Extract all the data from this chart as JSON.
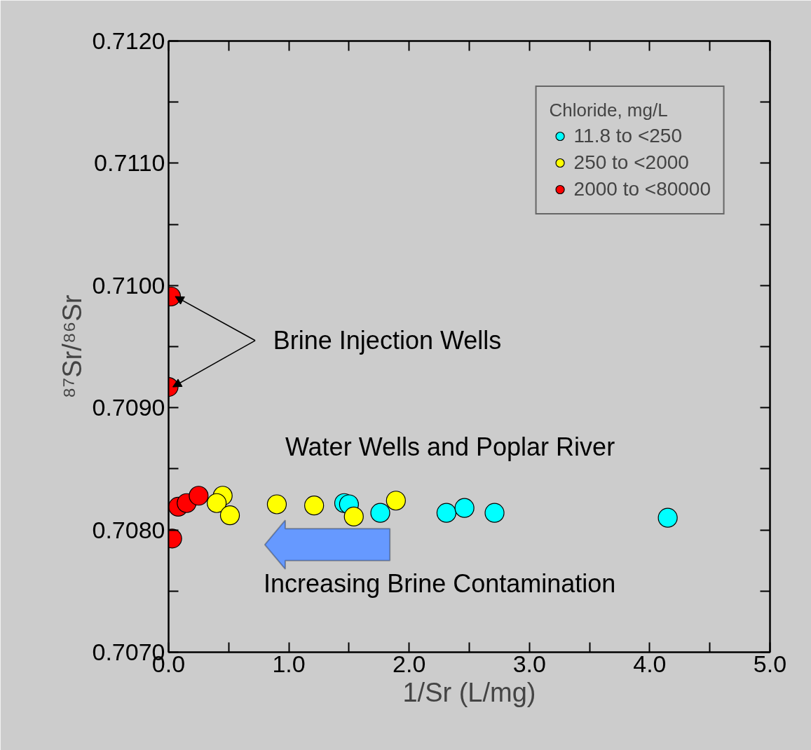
{
  "chart_data": {
    "type": "scatter",
    "xlabel": "1/Sr (L/mg)",
    "ylabel": "⁸⁷Sr/⁸⁶Sr",
    "legend_title": "Chloride, mg/L",
    "legend": "top right",
    "grid": false,
    "marker": "circle",
    "xlim": [
      0,
      5
    ],
    "ylim": [
      0.707,
      0.712
    ],
    "xticks": [
      {
        "value": 0,
        "label": "0.0"
      },
      {
        "value": 0.5,
        "label": null
      },
      {
        "value": 1,
        "label": "1.0"
      },
      {
        "value": 1.5,
        "label": null
      },
      {
        "value": 2,
        "label": "2.0"
      },
      {
        "value": 2.5,
        "label": null
      },
      {
        "value": 3,
        "label": "3.0"
      },
      {
        "value": 3.5,
        "label": null
      },
      {
        "value": 4,
        "label": "4.0"
      },
      {
        "value": 4.5,
        "label": null
      },
      {
        "value": 5,
        "label": "5.0"
      }
    ],
    "yticks": [
      {
        "value": 0.707,
        "label": "0.7070"
      },
      {
        "value": 0.7075,
        "label": null
      },
      {
        "value": 0.708,
        "label": "0.7080"
      },
      {
        "value": 0.7085,
        "label": null
      },
      {
        "value": 0.709,
        "label": "0.7090"
      },
      {
        "value": 0.7095,
        "label": null
      },
      {
        "value": 0.71,
        "label": "0.7100"
      },
      {
        "value": 0.7105,
        "label": null
      },
      {
        "value": 0.711,
        "label": "0.7110"
      },
      {
        "value": 0.7115,
        "label": null
      },
      {
        "value": 0.712,
        "label": "0.7120"
      }
    ],
    "series": [
      {
        "name": "11.8 to <250",
        "color": "#00ffff",
        "x": [
          1.46,
          1.5,
          1.76,
          2.31,
          2.46,
          2.71,
          4.15
        ],
        "values": [
          0.70822,
          0.70821,
          0.70814,
          0.70814,
          0.70818,
          0.70814,
          0.7081
        ]
      },
      {
        "name": "250 to <2000",
        "color": "#ffff00",
        "x": [
          0.45,
          0.4,
          0.51,
          0.9,
          1.21,
          1.54,
          1.89
        ],
        "values": [
          0.70828,
          0.70822,
          0.70812,
          0.70821,
          0.7082,
          0.70811,
          0.70824
        ]
      },
      {
        "name": "2000 to <80000",
        "color": "#ff0000",
        "x": [
          0.02,
          0.0,
          0.08,
          0.15,
          0.25,
          0.03
        ],
        "values": [
          0.70991,
          0.70917,
          0.70819,
          0.70822,
          0.70828,
          0.70793
        ]
      }
    ],
    "annotations": [
      {
        "text": "Brine Injection Wells",
        "x": 0.02,
        "y": 0.70991
      },
      "Water Wells and Poplar River",
      "Increasing Brine Contamination"
    ]
  }
}
